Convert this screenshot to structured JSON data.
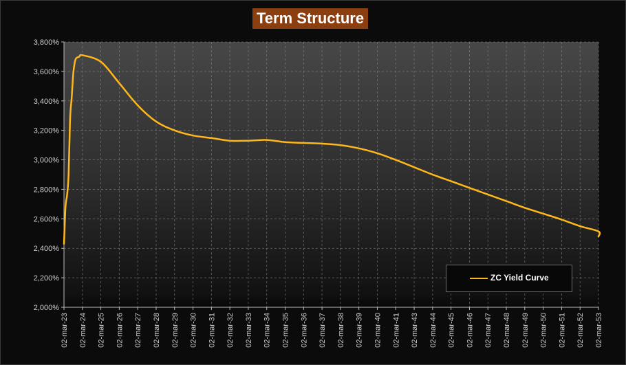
{
  "chart_data": {
    "type": "line",
    "title": "Term Structure",
    "xlabel": "",
    "ylabel": "",
    "ylim": [
      2.0,
      3.8
    ],
    "yticks": [
      "2,000%",
      "2,200%",
      "2,400%",
      "2,600%",
      "2,800%",
      "3,000%",
      "3,200%",
      "3,400%",
      "3,600%",
      "3,800%"
    ],
    "xticks": [
      "02-mar-23",
      "02-mar-24",
      "02-mar-25",
      "02-mar-26",
      "02-mar-27",
      "02-mar-28",
      "02-mar-29",
      "02-mar-30",
      "02-mar-31",
      "02-mar-32",
      "02-mar-33",
      "02-mar-34",
      "02-mar-35",
      "02-mar-36",
      "02-mar-37",
      "02-mar-38",
      "02-mar-39",
      "02-mar-40",
      "02-mar-41",
      "02-mar-43",
      "02-mar-44",
      "02-mar-45",
      "02-mar-46",
      "02-mar-47",
      "02-mar-48",
      "02-mar-49",
      "02-mar-50",
      "02-mar-51",
      "02-mar-52",
      "02-mar-53"
    ],
    "grid": true,
    "legend_position": "bottom-right",
    "colors": {
      "series": "#ffb81c",
      "title_bg": "#8b3e10"
    },
    "series": [
      {
        "name": "ZC Yield Curve",
        "points": [
          [
            "02-mar-23",
            2.43
          ],
          [
            "02-apr-23",
            2.68
          ],
          [
            "02-may-23",
            2.76
          ],
          [
            "02-jun-23",
            2.9
          ],
          [
            "02-jul-23",
            3.28
          ],
          [
            "02-aug-23",
            3.42
          ],
          [
            "02-sep-23",
            3.58
          ],
          [
            "02-oct-23",
            3.66
          ],
          [
            "02-nov-23",
            3.69
          ],
          [
            "02-jan-24",
            3.7
          ],
          [
            "02-mar-24",
            3.71
          ],
          [
            "02-mar-25",
            3.665
          ],
          [
            "02-mar-26",
            3.52
          ],
          [
            "02-mar-27",
            3.37
          ],
          [
            "02-mar-28",
            3.26
          ],
          [
            "02-mar-29",
            3.2
          ],
          [
            "02-mar-30",
            3.165
          ],
          [
            "02-mar-31",
            3.148
          ],
          [
            "02-mar-32",
            3.13
          ],
          [
            "02-mar-33",
            3.13
          ],
          [
            "02-mar-34",
            3.135
          ],
          [
            "02-mar-35",
            3.12
          ],
          [
            "02-mar-36",
            3.115
          ],
          [
            "02-mar-37",
            3.11
          ],
          [
            "02-mar-38",
            3.1
          ],
          [
            "02-mar-39",
            3.078
          ],
          [
            "02-mar-40",
            3.045
          ],
          [
            "02-mar-41",
            3.0
          ],
          [
            "02-mar-43",
            2.95
          ],
          [
            "02-mar-44",
            2.9
          ],
          [
            "02-mar-45",
            2.855
          ],
          [
            "02-mar-46",
            2.81
          ],
          [
            "02-mar-47",
            2.765
          ],
          [
            "02-mar-48",
            2.72
          ],
          [
            "02-mar-49",
            2.675
          ],
          [
            "02-mar-50",
            2.635
          ],
          [
            "02-mar-51",
            2.595
          ],
          [
            "02-mar-52",
            2.55
          ],
          [
            "02-mar-53",
            2.515
          ],
          [
            "02-mar-54",
            2.48
          ]
        ]
      }
    ]
  }
}
